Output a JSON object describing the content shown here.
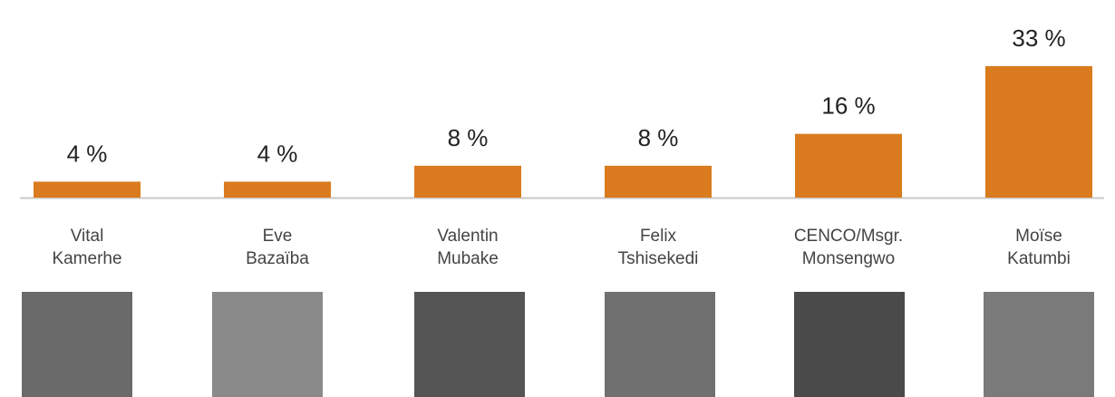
{
  "chart_data": {
    "type": "bar",
    "categories": [
      "Vital Kamerhe",
      "Eve Bazaïba",
      "Valentin Mubake",
      "Felix Tshisekedi",
      "CENCO/Msgr. Monsengwo",
      "Moïse Katumbi"
    ],
    "values": [
      4,
      4,
      8,
      8,
      16,
      33
    ],
    "value_labels": [
      "4 %",
      "4 %",
      "8 %",
      "8 %",
      "16 %",
      "33 %"
    ],
    "color": "#d97b1e"
  }
}
